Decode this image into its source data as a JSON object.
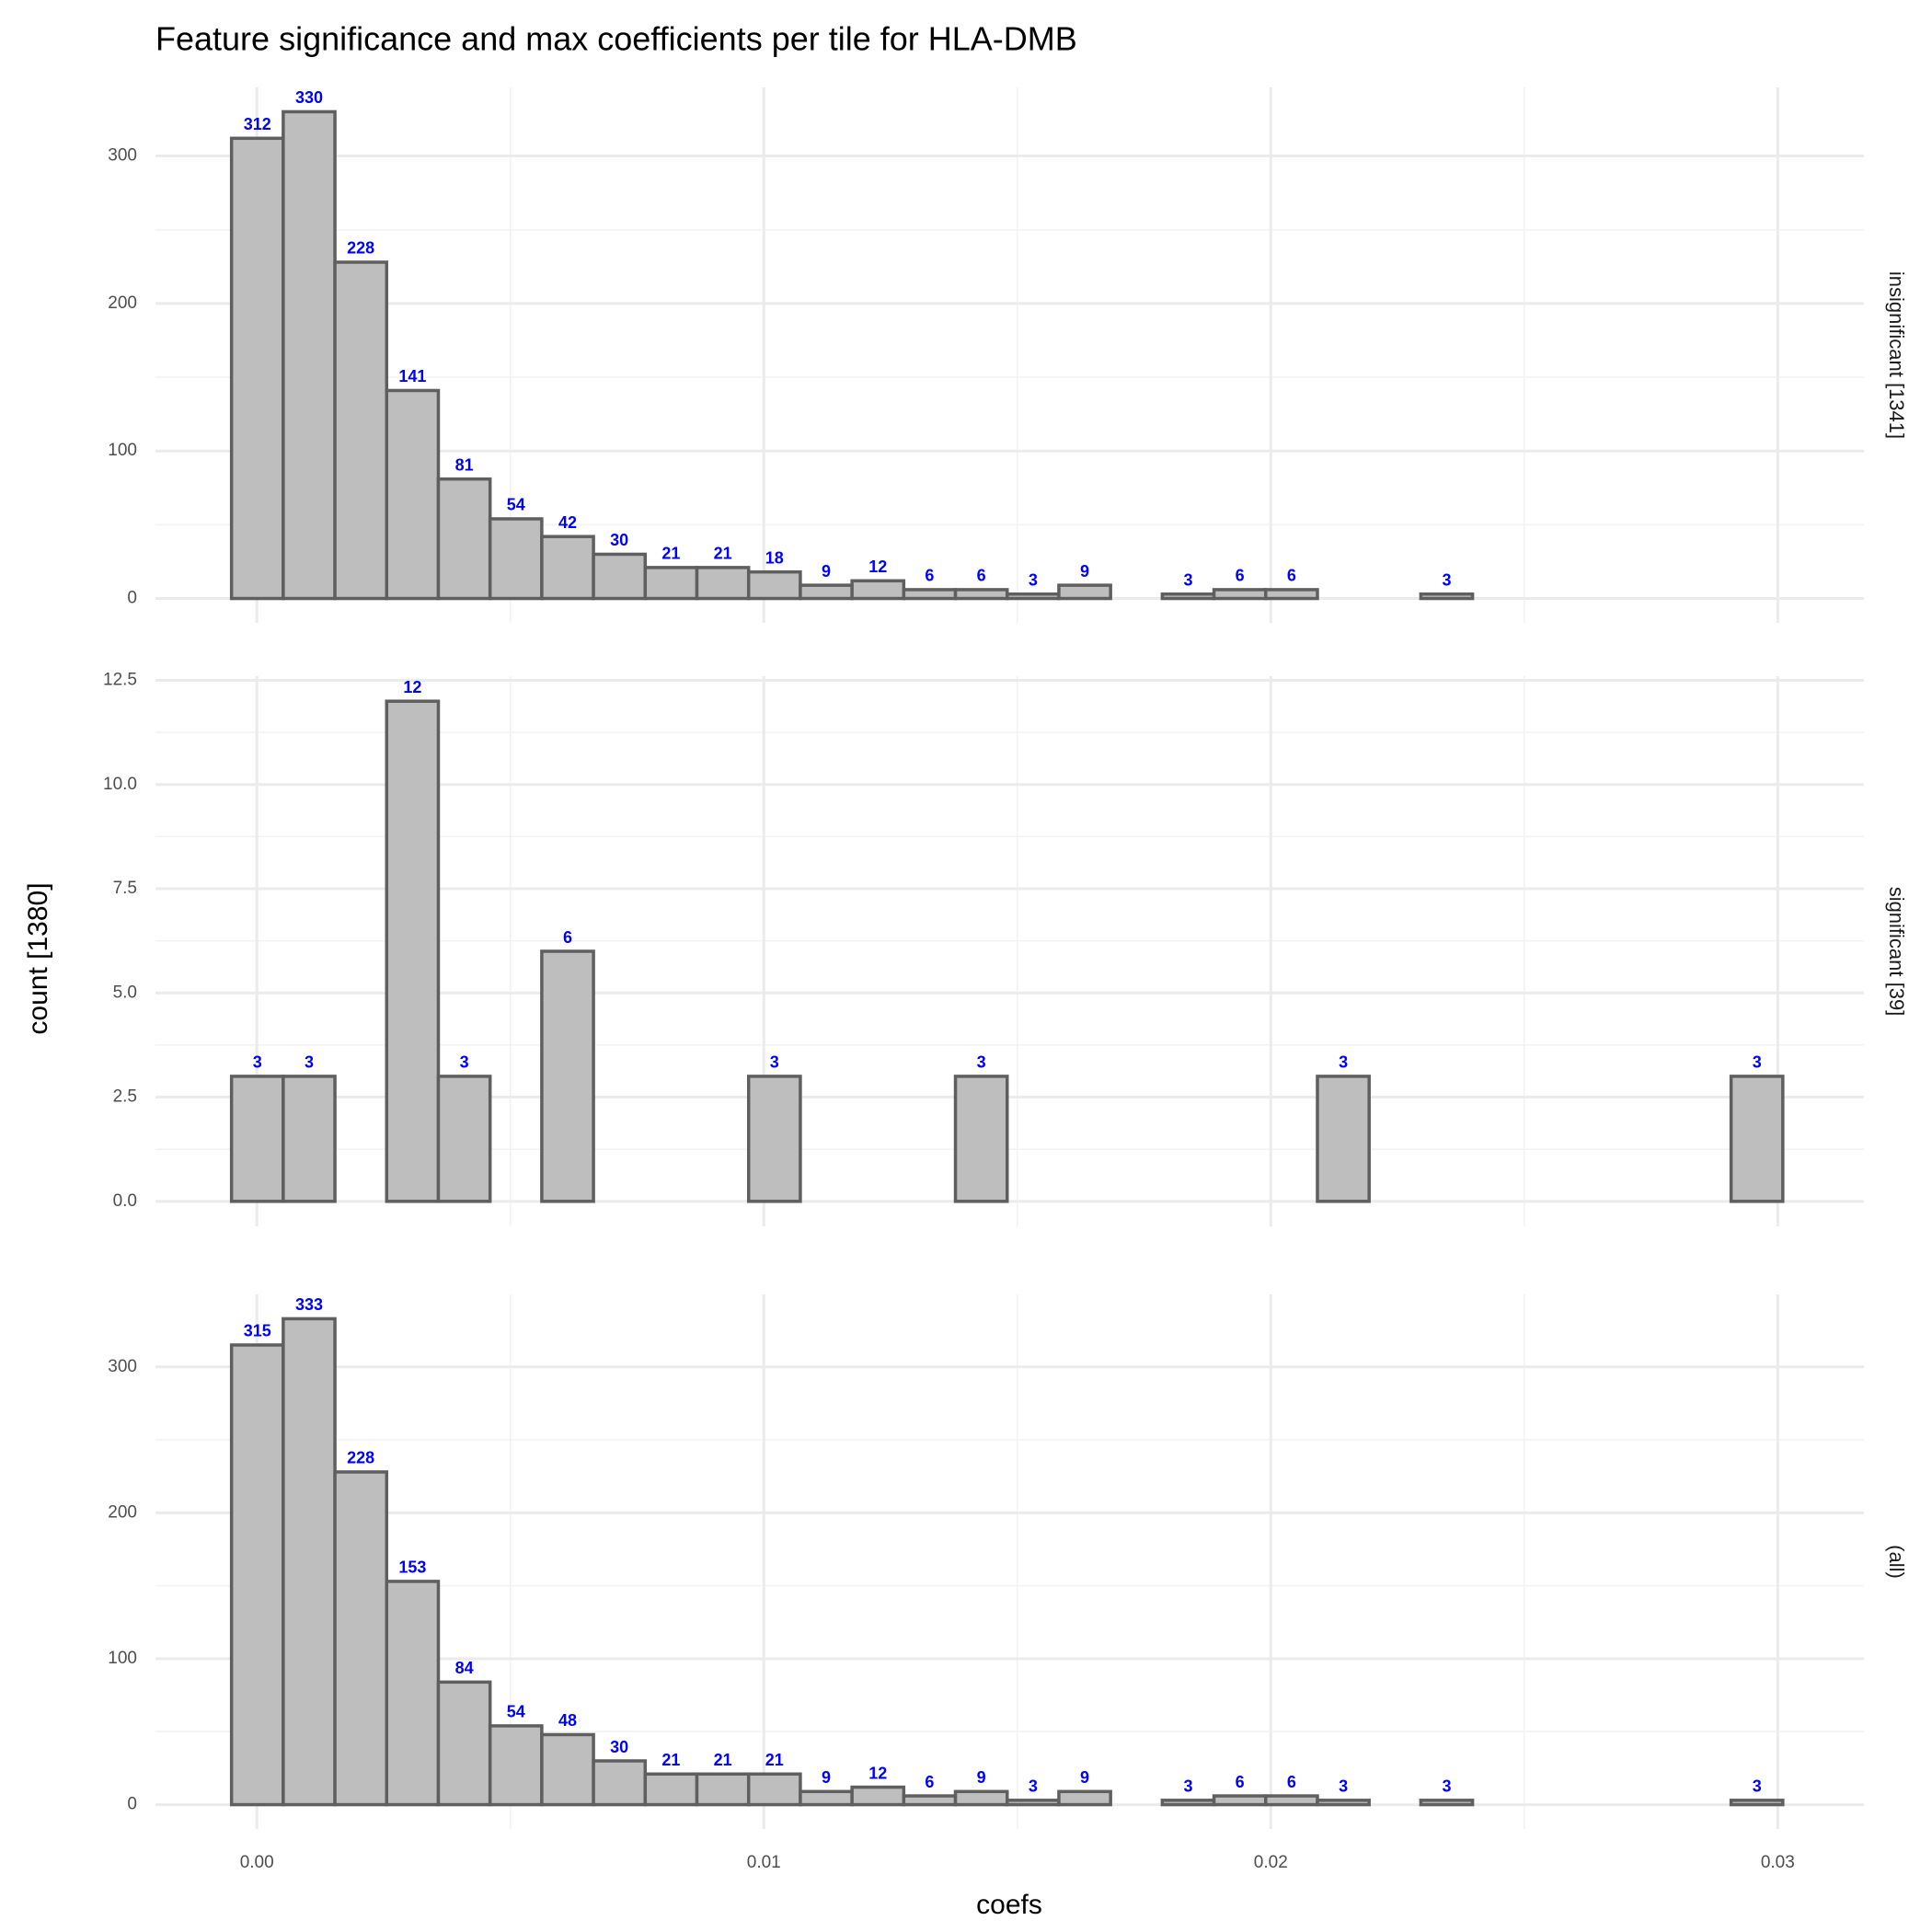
{
  "title": "Feature significance and max coefficients per tile for HLA-DMB",
  "x_label": "coefs",
  "y_label": "count [1380]",
  "chart_data": [
    {
      "type": "histogram",
      "strip": "insignificant [1341]",
      "bins": [
        -0.0005,
        0.00052,
        0.00154,
        0.00256,
        0.00358,
        0.0046,
        0.00562,
        0.00664,
        0.00766,
        0.00868,
        0.0097,
        0.01072,
        0.01174,
        0.01276,
        0.01378,
        0.0148,
        0.01582,
        0.01684,
        0.01786,
        0.01888,
        0.0199,
        0.02092,
        0.02194,
        0.02296,
        0.02398,
        0.025,
        0.02602,
        0.02704,
        0.02806,
        0.02908,
        0.0301
      ],
      "values": [
        312,
        330,
        228,
        141,
        81,
        54,
        42,
        30,
        21,
        21,
        18,
        9,
        12,
        6,
        6,
        3,
        9,
        0,
        3,
        6,
        6,
        0,
        0,
        3,
        0,
        0,
        0,
        0,
        0,
        0
      ],
      "xlim": [
        -0.002,
        0.0317
      ],
      "xticks": [
        {
          "value": 0,
          "label": "0.00"
        },
        {
          "value": 0.01,
          "label": "0.01"
        },
        {
          "value": 0.02,
          "label": "0.02"
        },
        {
          "value": 0.03,
          "label": "0.03"
        }
      ],
      "ylim": [
        -16.5,
        346.5
      ],
      "yticks": [
        0,
        100,
        200,
        300
      ],
      "color": "#bebebe",
      "edgecolor": "#5f5f5f",
      "label_color": "#0000ff",
      "grid": true
    },
    {
      "type": "histogram",
      "strip": "significant [39]",
      "bins": [
        -0.0005,
        0.00052,
        0.00154,
        0.00256,
        0.00358,
        0.0046,
        0.00562,
        0.00664,
        0.00766,
        0.00868,
        0.0097,
        0.01072,
        0.01174,
        0.01276,
        0.01378,
        0.0148,
        0.01582,
        0.01684,
        0.01786,
        0.01888,
        0.0199,
        0.02092,
        0.02194,
        0.02296,
        0.02398,
        0.025,
        0.02602,
        0.02704,
        0.02806,
        0.02908,
        0.0301
      ],
      "values": [
        3,
        3,
        0,
        12,
        3,
        0,
        6,
        0,
        0,
        0,
        3,
        0,
        0,
        0,
        3,
        0,
        0,
        0,
        0,
        0,
        0,
        3,
        0,
        0,
        0,
        0,
        0,
        0,
        0,
        3
      ],
      "xlim": [
        -0.002,
        0.0317
      ],
      "xticks": [
        {
          "value": 0,
          "label": "0.00"
        },
        {
          "value": 0.01,
          "label": "0.01"
        },
        {
          "value": 0.02,
          "label": "0.02"
        },
        {
          "value": 0.03,
          "label": "0.03"
        }
      ],
      "ylim": [
        -0.6,
        12.6
      ],
      "yticks": [
        {
          "value": 0,
          "label": "0.0"
        },
        2.5,
        {
          "value": 5,
          "label": "5.0"
        },
        7.5,
        {
          "value": 10,
          "label": "10.0"
        },
        12.5
      ],
      "color": "#bebebe",
      "edgecolor": "#5f5f5f",
      "label_color": "#0000ff",
      "grid": true
    },
    {
      "type": "histogram",
      "strip": "(all)",
      "bins": [
        -0.0005,
        0.00052,
        0.00154,
        0.00256,
        0.00358,
        0.0046,
        0.00562,
        0.00664,
        0.00766,
        0.00868,
        0.0097,
        0.01072,
        0.01174,
        0.01276,
        0.01378,
        0.0148,
        0.01582,
        0.01684,
        0.01786,
        0.01888,
        0.0199,
        0.02092,
        0.02194,
        0.02296,
        0.02398,
        0.025,
        0.02602,
        0.02704,
        0.02806,
        0.02908,
        0.0301
      ],
      "values": [
        315,
        333,
        228,
        153,
        84,
        54,
        48,
        30,
        21,
        21,
        21,
        9,
        12,
        6,
        9,
        3,
        9,
        0,
        3,
        6,
        6,
        3,
        0,
        3,
        0,
        0,
        0,
        0,
        0,
        3
      ],
      "xlim": [
        -0.002,
        0.0317
      ],
      "xticks": [
        {
          "value": 0,
          "label": "0.00"
        },
        {
          "value": 0.01,
          "label": "0.01"
        },
        {
          "value": 0.02,
          "label": "0.02"
        },
        {
          "value": 0.03,
          "label": "0.03"
        }
      ],
      "ylim": [
        -16.65,
        349.65
      ],
      "yticks": [
        0,
        100,
        200,
        300
      ],
      "color": "#bebebe",
      "edgecolor": "#5f5f5f",
      "label_color": "#0000ff",
      "grid": true
    }
  ]
}
